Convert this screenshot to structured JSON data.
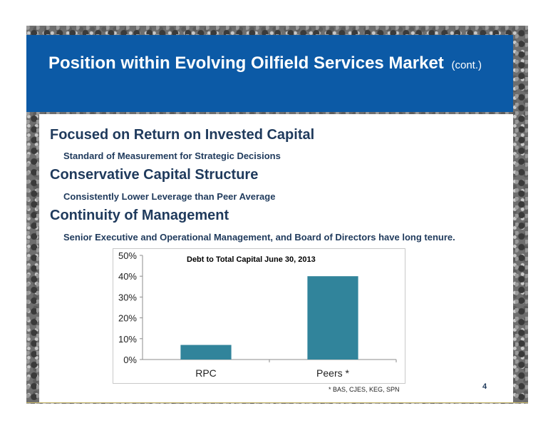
{
  "slide": {
    "title": "Position within Evolving Oilfield Services Market",
    "title_suffix": "(cont.)",
    "bullets": [
      {
        "heading": "Focused on Return on Invested Capital",
        "sub": "Standard of Measurement for Strategic Decisions"
      },
      {
        "heading": "Conservative Capital Structure",
        "sub": "Consistently Lower Leverage than Peer Average"
      },
      {
        "heading": "Continuity of Management",
        "sub": "Senior Executive and Operational Management, and Board of Directors have long tenure."
      }
    ],
    "footnote": "* BAS, CJES, KEG, SPN",
    "page_number": "4"
  },
  "colors": {
    "title_bar": "#0c5aa6",
    "heading_text": "#1f3a5c",
    "bar": "#31849b"
  },
  "chart_data": {
    "type": "bar",
    "title": "Debt to Total Capital  June 30, 2013",
    "categories": [
      "RPC",
      "Peers *"
    ],
    "values": [
      7,
      40
    ],
    "ylim": [
      0,
      50
    ],
    "yticks": [
      "0%",
      "10%",
      "20%",
      "30%",
      "40%",
      "50%"
    ],
    "grid": false,
    "legend": "none"
  }
}
